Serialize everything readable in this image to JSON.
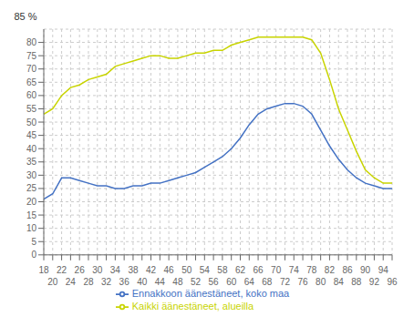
{
  "chart_data": {
    "type": "line",
    "x": [
      18,
      20,
      22,
      24,
      26,
      28,
      30,
      32,
      34,
      36,
      38,
      40,
      42,
      44,
      46,
      48,
      50,
      52,
      54,
      56,
      58,
      60,
      62,
      64,
      66,
      68,
      70,
      72,
      74,
      76,
      78,
      80,
      82,
      84,
      86,
      88,
      90,
      92,
      94,
      96
    ],
    "series": [
      {
        "name": "Ennakkoon äänestäneet, koko maa",
        "color": "#4472c4",
        "values": [
          21,
          23,
          29,
          29,
          28,
          27,
          26,
          26,
          25,
          25,
          26,
          26,
          27,
          27,
          28,
          29,
          30,
          31,
          33,
          35,
          37,
          40,
          44,
          49,
          53,
          55,
          56,
          57,
          57,
          56,
          53,
          47,
          41,
          36,
          32,
          29,
          27,
          26,
          25,
          25
        ]
      },
      {
        "name": "Kaikki äänestäneet, alueilla",
        "color": "#c8d400",
        "values": [
          53,
          55,
          60,
          63,
          64,
          66,
          67,
          68,
          71,
          72,
          73,
          74,
          75,
          75,
          74,
          74,
          75,
          76,
          76,
          77,
          77,
          79,
          80,
          81,
          82,
          82,
          82,
          82,
          82,
          82,
          81,
          76,
          66,
          55,
          47,
          39,
          32,
          29,
          27,
          27
        ]
      }
    ],
    "xlim": [
      18,
      96
    ],
    "xticks": [
      18,
      20,
      22,
      24,
      26,
      28,
      30,
      32,
      34,
      36,
      38,
      40,
      42,
      44,
      46,
      48,
      50,
      52,
      54,
      56,
      58,
      60,
      62,
      64,
      66,
      68,
      70,
      72,
      74,
      76,
      78,
      80,
      82,
      84,
      86,
      88,
      90,
      92,
      94,
      96
    ],
    "ylim": [
      0,
      85
    ],
    "yticks": [
      0,
      5,
      10,
      15,
      20,
      25,
      30,
      35,
      40,
      45,
      50,
      55,
      60,
      65,
      70,
      75,
      80
    ],
    "annotations": [
      "85 %"
    ],
    "grid": true,
    "legend": "bottom"
  }
}
